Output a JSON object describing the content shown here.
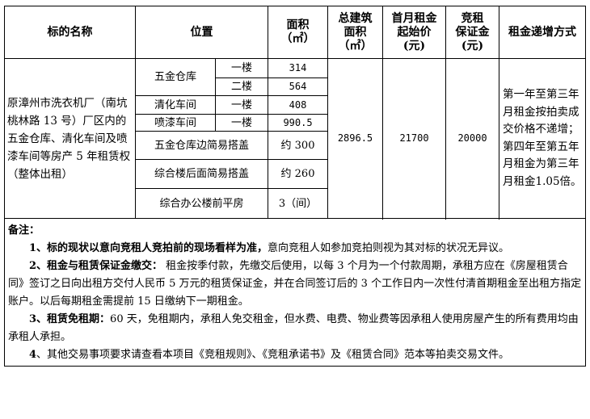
{
  "header": {
    "name": "标的名称",
    "location": "位置",
    "area": "面积",
    "area_unit": "（㎡）",
    "total_area_l1": "总建筑",
    "total_area_l2": "面积",
    "total_area_unit": "（㎡）",
    "rent_l1": "首月租金",
    "rent_l2": "起始价",
    "rent_unit": "(元)",
    "deposit_l1": "竞租",
    "deposit_l2": "保证金",
    "deposit_unit": "(元)",
    "increase": "租金递增方式"
  },
  "item": {
    "name": "原漳州市洗衣机厂（南坑桃林路 13 号）厂区内的五金仓库、清化车间及喷漆车间等房产 5 年租赁权（整体出租）",
    "total_area": "2896.5",
    "first_rent": "21700",
    "deposit": "20000",
    "increase": "第一年至第三年月租金按拍卖成交价格不递增；第四年至第五年月租金为第三年月租金1.05倍。"
  },
  "rows": [
    {
      "building": "五金仓库",
      "floor": "一楼",
      "area": "314"
    },
    {
      "floor": "二楼",
      "area": "564"
    },
    {
      "building": "清化车间",
      "floor": "一楼",
      "area": "408"
    },
    {
      "building": "喷漆车间",
      "floor": "一楼",
      "area": "990.5"
    },
    {
      "building": "五金仓库边简易搭盖",
      "area": "约 300"
    },
    {
      "building": "综合楼后面简易搭盖",
      "area": "约 260"
    },
    {
      "building": "综合办公楼前平房",
      "area": "3（间）"
    }
  ],
  "notes": {
    "title": "备注：",
    "n1_bold": "1、标的现状以意向竞租人竞拍前的现场看样为准，",
    "n1": "意向竞租人如参加竞拍则视为其对标的状况无异议。",
    "n2_bold": "2、租金与租赁保证金缴交：",
    "n2": " 租金按季付款，先缴交后使用，以每 3 个月为一个付款周期，承租方应在《房屋租赁合同》签订之日向出租方交付人民币 5 万元的租赁保证金，并在合同签订后的 3 个工作日内一次性付清首期租金至出租方指定账户。以后每期租金需提前 15 日缴纳下一期租金。",
    "n3_bold": "3、租赁免租期：",
    "n3": "60 天，免租期内，承租人免交租金，但水费、电费、物业费等因承租人使用房屋产生的所有费用均由承租人承担。",
    "n4_bold": "4",
    "n4": "、其他交易事项要求请查看本项目《竞租规则》、《竞租承诺书》及《租赁合同》范本等拍卖交易文件。"
  }
}
